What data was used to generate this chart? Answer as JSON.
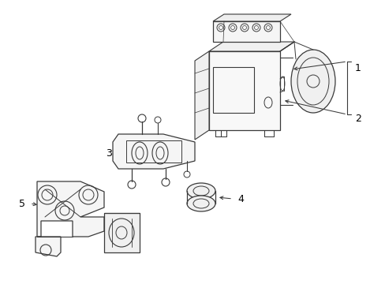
{
  "background_color": "#ffffff",
  "line_color": "#3a3a3a",
  "figsize": [
    4.89,
    3.6
  ],
  "dpi": 100,
  "lw": 0.75
}
